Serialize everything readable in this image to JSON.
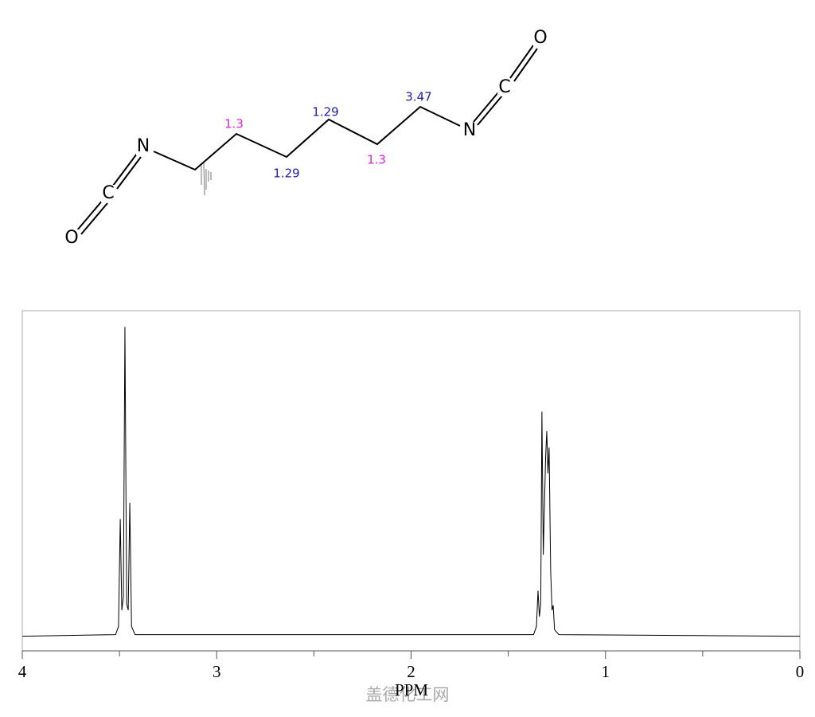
{
  "molecule": {
    "atoms": [
      "O",
      "C",
      "N",
      "N",
      "C",
      "O"
    ],
    "shifts": [
      {
        "label": "1.3",
        "color": "#e01ee0"
      },
      {
        "label": "1.29",
        "color": "#1a1ab4"
      },
      {
        "label": "1.29",
        "color": "#1a1ab4"
      },
      {
        "label": "1.3",
        "color": "#e01ee0"
      },
      {
        "label": "3.47",
        "color": "#1a1ab4"
      }
    ]
  },
  "chart_data": {
    "type": "line",
    "x_label": "PPM",
    "watermark": "盖德化工网",
    "xlim": [
      4,
      0
    ],
    "ylim": [
      -4.5,
      100
    ],
    "xticks": [
      4,
      3,
      2,
      1,
      0
    ],
    "xminorticks": [
      3.5,
      2.5,
      1.5,
      0.5
    ],
    "x": [
      4,
      3.52,
      3.505,
      3.496,
      3.488,
      3.48,
      3.472,
      3.463,
      3.455,
      3.447,
      3.438,
      3.42,
      1.37,
      1.355,
      1.347,
      1.34,
      1.333,
      1.327,
      1.32,
      1.314,
      1.308,
      1.302,
      1.296,
      1.29,
      1.282,
      1.275,
      1.269,
      1.262,
      1.24,
      0
    ],
    "series": [
      {
        "color": "#000000",
        "values": [
          0,
          0.5,
          3,
          36,
          8,
          12,
          95,
          10,
          8,
          41,
          3,
          0.5,
          0.5,
          3,
          14,
          6,
          10,
          69,
          25,
          40,
          55,
          63,
          50,
          58,
          20,
          8,
          9.5,
          2,
          0.5,
          0
        ]
      }
    ]
  }
}
